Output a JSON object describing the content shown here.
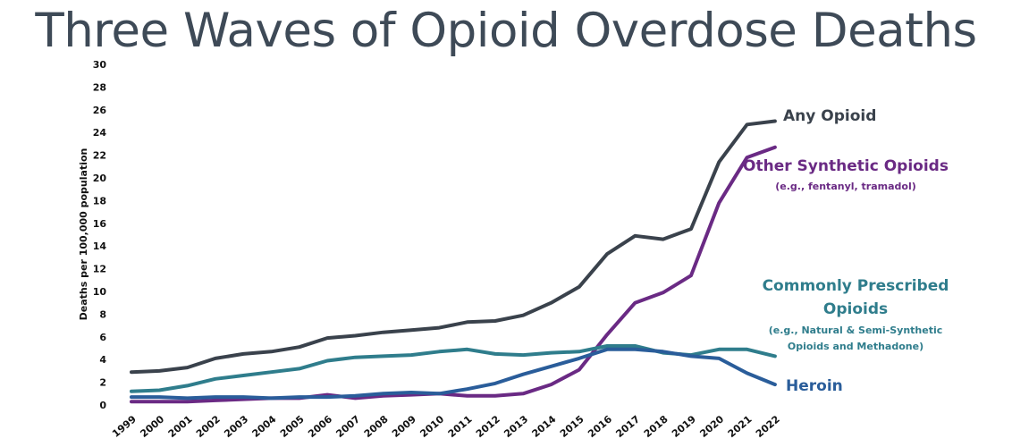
{
  "title": "Three Waves of Opioid Overdose Deaths",
  "chart_data": {
    "type": "line",
    "title": "Three Waves of Opioid Overdose Deaths",
    "xlabel": "",
    "ylabel": "Deaths per 100,000 population",
    "ylim": [
      0,
      30
    ],
    "yticks": [
      "0",
      "2",
      "4",
      "6",
      "8",
      "10",
      "12",
      "14",
      "16",
      "18",
      "20",
      "22",
      "24",
      "26",
      "28",
      "30"
    ],
    "x": [
      "1999",
      "2000",
      "2001",
      "2002",
      "2003",
      "2004",
      "2005",
      "2006",
      "2007",
      "2008",
      "2009",
      "2010",
      "2011",
      "2012",
      "2013",
      "2014",
      "2015",
      "2016",
      "2017",
      "2018",
      "2019",
      "2020",
      "2021",
      "2022"
    ],
    "grid": false,
    "series": [
      {
        "name": "Any Opioid",
        "color": "#3a424c",
        "values": [
          2.9,
          3.0,
          3.3,
          4.1,
          4.5,
          4.7,
          5.1,
          5.9,
          6.1,
          6.4,
          6.6,
          6.8,
          7.3,
          7.4,
          7.9,
          9.0,
          10.4,
          13.3,
          14.9,
          14.6,
          15.5,
          21.4,
          24.7,
          25.0
        ]
      },
      {
        "name": "Other Synthetic Opioids",
        "color": "#6a2a84",
        "values": [
          0.3,
          0.3,
          0.3,
          0.4,
          0.5,
          0.6,
          0.6,
          0.9,
          0.6,
          0.8,
          0.9,
          1.0,
          0.8,
          0.8,
          1.0,
          1.8,
          3.1,
          6.2,
          9.0,
          9.9,
          11.4,
          17.8,
          21.8,
          22.7
        ]
      },
      {
        "name": "Commonly Prescribed Opioids",
        "color": "#2f7d8c",
        "values": [
          1.2,
          1.3,
          1.7,
          2.3,
          2.6,
          2.9,
          3.2,
          3.9,
          4.2,
          4.3,
          4.4,
          4.7,
          4.9,
          4.5,
          4.4,
          4.6,
          4.7,
          5.2,
          5.2,
          4.6,
          4.4,
          4.9,
          4.9,
          4.3
        ]
      },
      {
        "name": "Heroin",
        "color": "#2a5d9a",
        "values": [
          0.7,
          0.7,
          0.6,
          0.7,
          0.7,
          0.6,
          0.7,
          0.7,
          0.8,
          1.0,
          1.1,
          1.0,
          1.4,
          1.9,
          2.7,
          3.4,
          4.1,
          4.9,
          4.9,
          4.7,
          4.3,
          4.1,
          2.8,
          1.8
        ]
      }
    ],
    "annotations": {
      "any": {
        "main": "Any Opioid"
      },
      "synthetic": {
        "main": "Other Synthetic Opioids",
        "sub": "(e.g., fentanyl, tramadol)"
      },
      "prescribed": {
        "main1": "Commonly Prescribed",
        "main2": "Opioids",
        "sub1": "(e.g., Natural & Semi-Synthetic",
        "sub2": "Opioids and Methadone)"
      },
      "heroin": {
        "main": "Heroin"
      }
    }
  }
}
